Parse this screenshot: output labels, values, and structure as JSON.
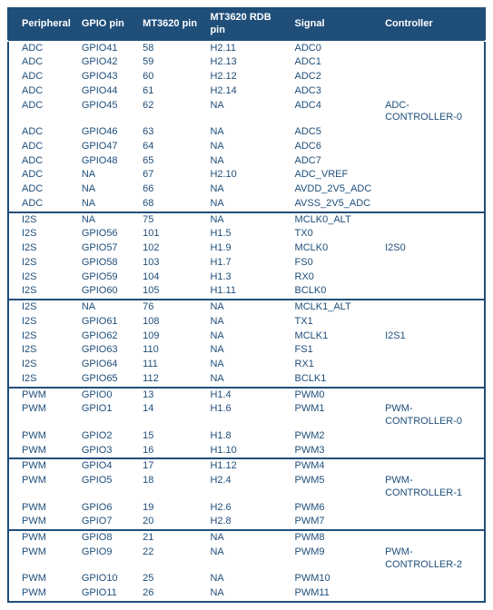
{
  "colors": {
    "header_bg": "#1f4e79",
    "header_text": "#ffffff",
    "body_text": "#1f4e79",
    "border": "#1f4e79",
    "background": "#ffffff"
  },
  "columns": [
    "Peripheral",
    "GPIO pin",
    "MT3620 pin",
    "MT3620 RDB pin",
    "Signal",
    "Controller"
  ],
  "groups": [
    {
      "rows": [
        [
          "ADC",
          "GPIO41",
          "58",
          "H2.11",
          "ADC0",
          ""
        ],
        [
          "ADC",
          "GPIO42",
          "59",
          "H2.13",
          "ADC1",
          ""
        ],
        [
          "ADC",
          "GPIO43",
          "60",
          "H2.12",
          "ADC2",
          ""
        ],
        [
          "ADC",
          "GPIO44",
          "61",
          "H2.14",
          "ADC3",
          ""
        ],
        [
          "ADC",
          "GPIO45",
          "62",
          "NA",
          "ADC4",
          "ADC-CONTROLLER-0"
        ],
        [
          "ADC",
          "GPIO46",
          "63",
          "NA",
          "ADC5",
          ""
        ],
        [
          "ADC",
          "GPIO47",
          "64",
          "NA",
          "ADC6",
          ""
        ],
        [
          "ADC",
          "GPIO48",
          "65",
          "NA",
          "ADC7",
          ""
        ],
        [
          "ADC",
          "NA",
          "67",
          "H2.10",
          "ADC_VREF",
          ""
        ],
        [
          "ADC",
          "NA",
          "66",
          "NA",
          "AVDD_2V5_ADC",
          ""
        ],
        [
          "ADC",
          "NA",
          "68",
          "NA",
          "AVSS_2V5_ADC",
          ""
        ]
      ]
    },
    {
      "rows": [
        [
          "I2S",
          "NA",
          "75",
          "NA",
          "MCLK0_ALT",
          ""
        ],
        [
          "I2S",
          "GPIO56",
          "101",
          "H1.5",
          "TX0",
          ""
        ],
        [
          "I2S",
          "GPIO57",
          "102",
          "H1.9",
          "MCLK0",
          "I2S0"
        ],
        [
          "I2S",
          "GPIO58",
          "103",
          "H1.7",
          "FS0",
          ""
        ],
        [
          "I2S",
          "GPIO59",
          "104",
          "H1.3",
          "RX0",
          ""
        ],
        [
          "I2S",
          "GPIO60",
          "105",
          "H1.11",
          "BCLK0",
          ""
        ]
      ]
    },
    {
      "rows": [
        [
          "I2S",
          "NA",
          "76",
          "NA",
          "MCLK1_ALT",
          ""
        ],
        [
          "I2S",
          "GPIO61",
          "108",
          "NA",
          "TX1",
          ""
        ],
        [
          "I2S",
          "GPIO62",
          "109",
          "NA",
          "MCLK1",
          "I2S1"
        ],
        [
          "I2S",
          "GPIO63",
          "110",
          "NA",
          "FS1",
          ""
        ],
        [
          "I2S",
          "GPIO64",
          "111",
          "NA",
          "RX1",
          ""
        ],
        [
          "I2S",
          "GPIO65",
          "112",
          "NA",
          "BCLK1",
          ""
        ]
      ]
    },
    {
      "rows": [
        [
          "PWM",
          "GPIO0",
          "13",
          "H1.4",
          "PWM0",
          ""
        ],
        [
          "PWM",
          "GPIO1",
          "14",
          "H1.6",
          "PWM1",
          "PWM-CONTROLLER-0"
        ],
        [
          "PWM",
          "GPIO2",
          "15",
          "H1.8",
          "PWM2",
          ""
        ],
        [
          "PWM",
          "GPIO3",
          "16",
          "H1.10",
          "PWM3",
          ""
        ]
      ]
    },
    {
      "rows": [
        [
          "PWM",
          "GPIO4",
          "17",
          "H1.12",
          "PWM4",
          ""
        ],
        [
          "PWM",
          "GPIO5",
          "18",
          "H2.4",
          "PWM5",
          "PWM-CONTROLLER-1"
        ],
        [
          "PWM",
          "GPIO6",
          "19",
          "H2.6",
          "PWM6",
          ""
        ],
        [
          "PWM",
          "GPIO7",
          "20",
          "H2.8",
          "PWM7",
          ""
        ]
      ]
    },
    {
      "rows": [
        [
          "PWM",
          "GPIO8",
          "21",
          "NA",
          "PWM8",
          ""
        ],
        [
          "PWM",
          "GPIO9",
          "22",
          "NA",
          "PWM9",
          "PWM-CONTROLLER-2"
        ],
        [
          "PWM",
          "GPIO10",
          "25",
          "NA",
          "PWM10",
          ""
        ],
        [
          "PWM",
          "GPIO11",
          "26",
          "NA",
          "PWM11",
          ""
        ]
      ]
    }
  ]
}
